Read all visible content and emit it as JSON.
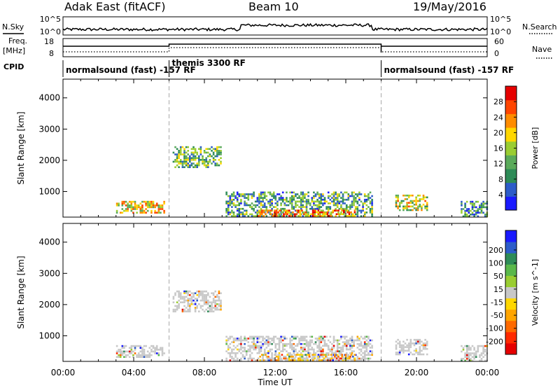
{
  "header": {
    "radar": "Adak East (fitACF)",
    "beam": "Beam 10",
    "date": "19/May/2016"
  },
  "strips": {
    "nsky_label": "N.Sky",
    "nsearch_label": "N.Search",
    "freq_label_1": "Freq.",
    "freq_label_2": "[MHz]",
    "nave_label": "Nave",
    "cpid_label": "CPID",
    "left_ticks_top": [
      "10^5",
      "10^0"
    ],
    "right_ticks_top": [
      "10^5",
      "10^0"
    ],
    "freq_ticks": [
      "18",
      "8"
    ],
    "nave_ticks": [
      "60",
      "0"
    ]
  },
  "cpid_segments": [
    {
      "label": "normalsound (fast) -157 RF",
      "start": 0,
      "end": 6
    },
    {
      "label": "themis 3300 RF",
      "start": 6,
      "end": 18
    },
    {
      "label": "normalsound (fast) -157 RF",
      "start": 18,
      "end": 24
    }
  ],
  "chart_data": [
    {
      "type": "heatmap",
      "ylabel": "Slant Range [km]",
      "xlabel": "Time UT",
      "x_ticks": [
        "00:00",
        "04:00",
        "08:00",
        "12:00",
        "16:00",
        "20:00",
        "00:00"
      ],
      "xlim": [
        0,
        24
      ],
      "y_ticks": [
        1000,
        2000,
        3000,
        4000
      ],
      "ylim": [
        180,
        4600
      ],
      "colorbar": {
        "label": "Power [dB]",
        "ticks": [
          "4",
          "8",
          "12",
          "16",
          "20",
          "24",
          "28"
        ],
        "range": [
          0,
          30
        ],
        "colors": [
          "#1a1aff",
          "#2d5cc9",
          "#2e8b57",
          "#5aaa5a",
          "#9acd32",
          "#ffd700",
          "#ff8c00",
          "#ff4500",
          "#e60000"
        ]
      },
      "echo_regions": [
        {
          "t0": 3.0,
          "t1": 5.7,
          "r0": 330,
          "r1": 700,
          "value": 18
        },
        {
          "t0": 6.2,
          "t1": 8.9,
          "r0": 1750,
          "r1": 2450,
          "value": 12
        },
        {
          "t0": 9.2,
          "t1": 17.5,
          "r0": 200,
          "r1": 1000,
          "value": 10
        },
        {
          "t0": 11.0,
          "t1": 16.5,
          "r0": 200,
          "r1": 420,
          "value": 22
        },
        {
          "t0": 18.8,
          "t1": 20.6,
          "r0": 420,
          "r1": 900,
          "value": 16
        },
        {
          "t0": 22.5,
          "t1": 24.0,
          "r0": 200,
          "r1": 700,
          "value": 8
        }
      ]
    },
    {
      "type": "heatmap",
      "ylabel": "Slant Range [km]",
      "xlabel": "Time UT",
      "x_ticks": [
        "00:00",
        "04:00",
        "08:00",
        "12:00",
        "16:00",
        "20:00",
        "00:00"
      ],
      "xlim": [
        0,
        24
      ],
      "y_ticks": [
        1000,
        2000,
        3000,
        4000
      ],
      "ylim": [
        180,
        4600
      ],
      "colorbar": {
        "label": "Velocity [m s^-1]",
        "ticks": [
          "200",
          "100",
          "50",
          "15",
          "-15",
          "-50",
          "-100",
          "-200"
        ],
        "colors": [
          "#1a1aff",
          "#2d5cc9",
          "#2e8b57",
          "#5ab84a",
          "#9acd32",
          "#c8c8c8",
          "#ffd700",
          "#ffa500",
          "#ff6a00",
          "#ff2a00",
          "#e60000"
        ]
      },
      "echo_regions": [
        {
          "t0": 3.0,
          "t1": 5.7,
          "r0": 330,
          "r1": 700,
          "value": 0
        },
        {
          "t0": 6.2,
          "t1": 8.9,
          "r0": 1750,
          "r1": 2450,
          "value": 0
        },
        {
          "t0": 9.2,
          "t1": 17.5,
          "r0": 200,
          "r1": 1000,
          "value": 0
        },
        {
          "t0": 11.0,
          "t1": 16.5,
          "r0": 200,
          "r1": 420,
          "value": -40
        },
        {
          "t0": 18.8,
          "t1": 20.6,
          "r0": 420,
          "r1": 900,
          "value": 0
        },
        {
          "t0": 22.5,
          "t1": 24.0,
          "r0": 200,
          "r1": 700,
          "value": 0
        }
      ]
    }
  ]
}
